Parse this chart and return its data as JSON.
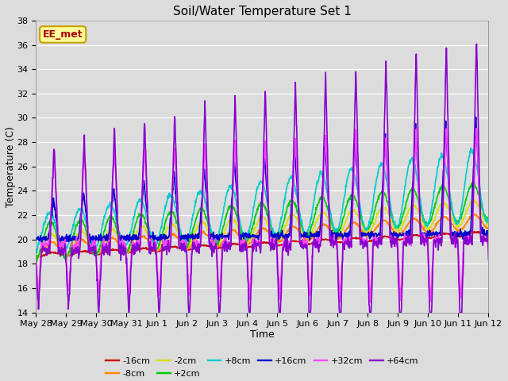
{
  "title": "Soil/Water Temperature Set 1",
  "xlabel": "Time",
  "ylabel": "Temperature (C)",
  "ylim": [
    14,
    38
  ],
  "yticks": [
    14,
    16,
    18,
    20,
    22,
    24,
    26,
    28,
    30,
    32,
    34,
    36,
    38
  ],
  "background_color": "#dcdcdc",
  "plot_bg_color": "#dcdcdc",
  "annotation_text": "EE_met",
  "annotation_bg": "#ffff99",
  "annotation_border": "#c8a000",
  "annotation_text_color": "#aa0000",
  "legend": [
    {
      "label": "-16cm",
      "color": "#cc0000",
      "lw": 1.2
    },
    {
      "label": "-8cm",
      "color": "#ff8800",
      "lw": 1.2
    },
    {
      "label": "-2cm",
      "color": "#dddd00",
      "lw": 1.2
    },
    {
      "label": "+2cm",
      "color": "#00cc00",
      "lw": 1.2
    },
    {
      "label": "+8cm",
      "color": "#00cccc",
      "lw": 1.2
    },
    {
      "label": "+16cm",
      "color": "#0000cc",
      "lw": 1.2
    },
    {
      "label": "+32cm",
      "color": "#ff44ff",
      "lw": 1.2
    },
    {
      "label": "+64cm",
      "color": "#8800cc",
      "lw": 1.2
    }
  ],
  "date_labels": [
    "May 28",
    "May 29",
    "May 30",
    "May 31",
    "Jun 1",
    "Jun 2",
    "Jun 3",
    "Jun 4",
    "Jun 5",
    "Jun 6",
    "Jun 7",
    "Jun 8",
    "Jun 9",
    "Jun 10",
    "Jun 11",
    "Jun 12"
  ],
  "n_points": 1440,
  "days": 15
}
